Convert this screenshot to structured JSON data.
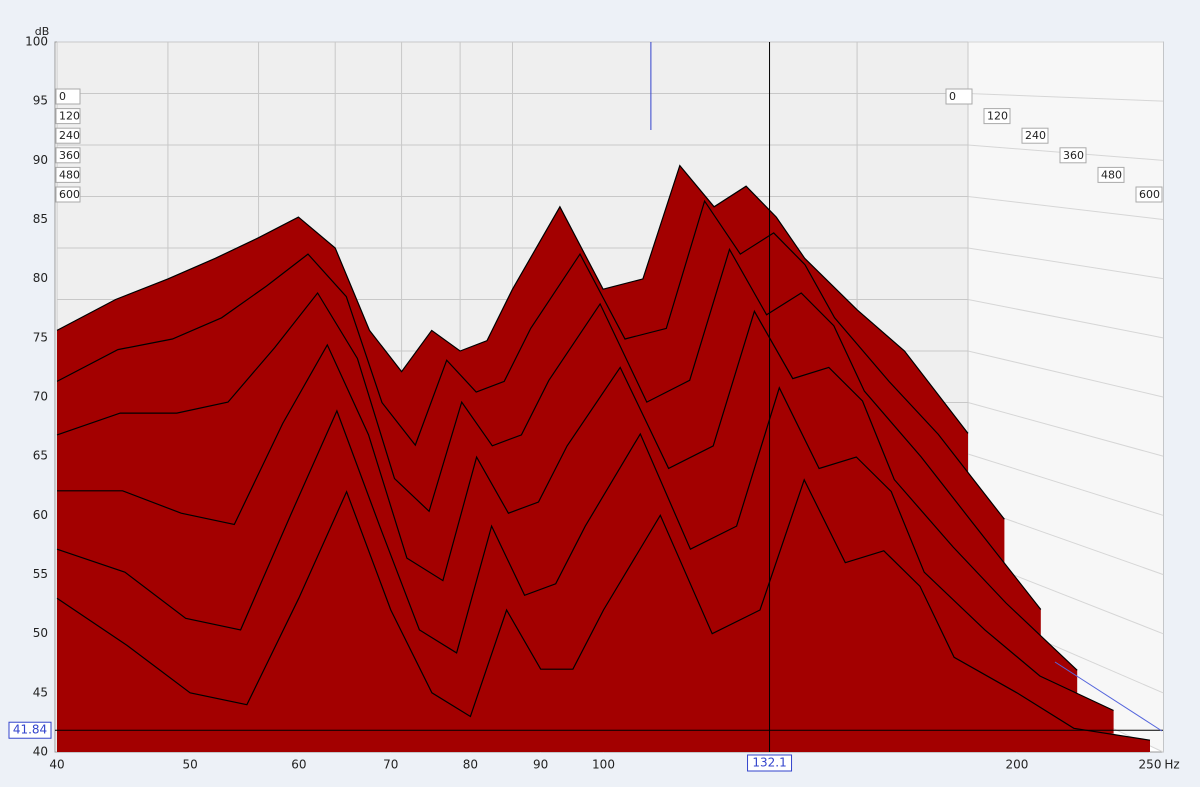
{
  "chart_data": {
    "type": "waterfall",
    "y_label": "dB",
    "x_label": "Hz",
    "corner_label": "600ms",
    "x": [
      40,
      45,
      50,
      55,
      60,
      65,
      70,
      75,
      80,
      85,
      90,
      95,
      100,
      110,
      120,
      130,
      140,
      150,
      160,
      170,
      180,
      200,
      220,
      250
    ],
    "series": [
      {
        "name": "0",
        "color": "#a30000",
        "values": [
          72,
          75,
          77,
          79,
          81,
          83,
          80,
          72,
          68,
          72,
          70,
          71,
          76,
          84,
          76,
          77,
          88,
          84,
          86,
          83,
          79,
          74,
          70,
          62
        ]
      },
      {
        "name": "120",
        "color": "#a30000",
        "values": [
          68,
          71,
          72,
          74,
          77,
          80,
          76,
          66,
          62,
          70,
          67,
          68,
          73,
          80,
          72,
          73,
          85,
          80,
          82,
          79,
          74,
          68,
          63,
          55
        ]
      },
      {
        "name": "240",
        "color": "#a30000",
        "values": [
          64,
          66,
          66,
          67,
          72,
          77,
          71,
          60,
          57,
          67,
          63,
          64,
          69,
          76,
          67,
          69,
          81,
          75,
          77,
          74,
          68,
          62,
          56,
          48
        ]
      },
      {
        "name": "360",
        "color": "#a30000",
        "values": [
          60,
          60,
          58,
          57,
          66,
          73,
          65,
          54,
          52,
          63,
          58,
          59,
          64,
          71,
          62,
          64,
          76,
          70,
          71,
          68,
          61,
          55,
          50,
          44
        ]
      },
      {
        "name": "480",
        "color": "#a30000",
        "values": [
          56,
          54,
          50,
          49,
          59,
          68,
          58,
          49,
          47,
          58,
          52,
          53,
          58,
          66,
          56,
          58,
          70,
          63,
          64,
          61,
          54,
          49,
          45,
          42
        ]
      },
      {
        "name": "600",
        "color": "#a30000",
        "values": [
          53,
          49,
          45,
          44,
          53,
          62,
          52,
          45,
          43,
          52,
          47,
          47,
          52,
          60,
          50,
          52,
          63,
          56,
          57,
          54,
          48,
          45,
          42,
          41
        ]
      }
    ],
    "xlim": [
      40,
      250
    ],
    "xticks": [
      40,
      50,
      60,
      70,
      80,
      90,
      100,
      200,
      250
    ],
    "log_x": true,
    "ylim": [
      40,
      100
    ],
    "yticks": [
      40,
      45,
      50,
      55,
      60,
      65,
      70,
      75,
      80,
      85,
      90,
      95,
      100
    ],
    "cursor_y": {
      "value": 41.84,
      "label": "41.84"
    },
    "cursor_x": {
      "value": 132.1,
      "label": "132.1"
    }
  }
}
